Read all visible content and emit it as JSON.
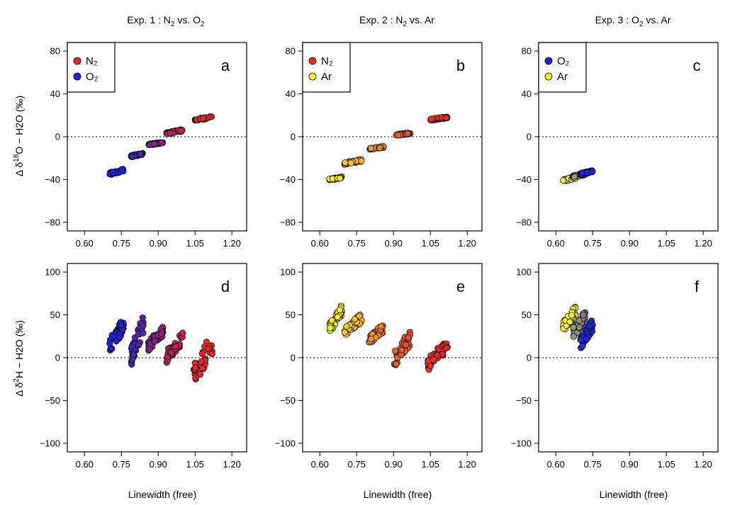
{
  "column_titles": [
    {
      "prefix": "Exp. 1 : N",
      "sub1": "2",
      "mid": " vs. O",
      "sub2": "2"
    },
    {
      "prefix": "Exp. 2 : N",
      "sub1": "2",
      "mid": " vs. Ar",
      "sub2": ""
    },
    {
      "prefix": "Exp. 3 : O",
      "sub1": "2",
      "mid": " vs. Ar",
      "sub2": ""
    }
  ],
  "row_labels": {
    "top": {
      "a": "Δ δ",
      "sup": "18",
      "b": "O − H2O (‰)"
    },
    "bottom": {
      "a": "Δ δ",
      "sup": "2",
      "b": "H − H2O (‰)"
    }
  },
  "x_axis_label": "Linewidth (free)",
  "colors": {
    "N2": "#e8262a",
    "O2": "#1f22d8",
    "Ar": "#f7f222"
  },
  "chart_data": [
    {
      "type": "scatter",
      "panel": "a",
      "col": 0,
      "row": 0,
      "xlim": [
        0.53,
        1.26
      ],
      "ylim": [
        -88,
        88
      ],
      "xticks": [
        "0.60",
        "0.75",
        "0.90",
        "1.05",
        "1.20"
      ],
      "yticks": [
        "-80",
        "-40",
        "0",
        "40",
        "80"
      ],
      "legend": [
        {
          "label": "N₂",
          "color": "#e8262a"
        },
        {
          "label": "O₂",
          "color": "#1f22d8"
        }
      ],
      "legend_position": "top-left",
      "series": [
        {
          "name": "O2→N2 mix",
          "color_from": "#1f22d8",
          "color_to": "#e8262a",
          "clusters": [
            {
              "x": [
                0.7,
                0.76
              ],
              "y": [
                -36,
                -30
              ]
            },
            {
              "x": [
                0.79,
                0.84
              ],
              "y": [
                -19,
                -15
              ]
            },
            {
              "x": [
                0.86,
                0.92
              ],
              "y": [
                -8,
                -5
              ]
            },
            {
              "x": [
                0.93,
                1.0
              ],
              "y": [
                2,
                7
              ]
            },
            {
              "x": [
                1.05,
                1.12
              ],
              "y": [
                15,
                19
              ]
            }
          ]
        }
      ]
    },
    {
      "type": "scatter",
      "panel": "b",
      "col": 1,
      "row": 0,
      "xlim": [
        0.53,
        1.26
      ],
      "ylim": [
        -88,
        88
      ],
      "xticks": [
        "0.60",
        "0.75",
        "0.90",
        "1.05",
        "1.20"
      ],
      "yticks": [
        "-80",
        "-40",
        "0",
        "40",
        "80"
      ],
      "legend": [
        {
          "label": "N₂",
          "color": "#e8262a"
        },
        {
          "label": "Ar",
          "color": "#f7f222"
        }
      ],
      "legend_position": "top-left",
      "series": [
        {
          "name": "Ar→N2 mix",
          "color_from": "#f7f222",
          "color_to": "#e8262a",
          "clusters": [
            {
              "x": [
                0.64,
                0.69
              ],
              "y": [
                -41,
                -37
              ]
            },
            {
              "x": [
                0.7,
                0.77
              ],
              "y": [
                -26,
                -21
              ]
            },
            {
              "x": [
                0.8,
                0.86
              ],
              "y": [
                -12,
                -9
              ]
            },
            {
              "x": [
                0.91,
                0.97
              ],
              "y": [
                1,
                4
              ]
            },
            {
              "x": [
                1.05,
                1.12
              ],
              "y": [
                15,
                19
              ]
            }
          ]
        }
      ]
    },
    {
      "type": "scatter",
      "panel": "c",
      "col": 2,
      "row": 0,
      "xlim": [
        0.53,
        1.26
      ],
      "ylim": [
        -88,
        88
      ],
      "xticks": [
        "0.60",
        "0.75",
        "0.90",
        "1.05",
        "1.20"
      ],
      "yticks": [
        "-80",
        "-40",
        "0",
        "40",
        "80"
      ],
      "legend": [
        {
          "label": "O₂",
          "color": "#1f22d8"
        },
        {
          "label": "Ar",
          "color": "#f7f222"
        }
      ],
      "legend_position": "top-left",
      "series": [
        {
          "name": "Ar→O2 mix",
          "color_from": "#f7f222",
          "color_to": "#1f22d8",
          "clusters": [
            {
              "x": [
                0.63,
                0.68
              ],
              "y": [
                -42,
                -37
              ]
            },
            {
              "x": [
                0.67,
                0.72
              ],
              "y": [
                -38,
                -34
              ]
            },
            {
              "x": [
                0.7,
                0.75
              ],
              "y": [
                -36,
                -31
              ]
            }
          ]
        }
      ]
    },
    {
      "type": "scatter",
      "panel": "d",
      "col": 0,
      "row": 1,
      "xlim": [
        0.53,
        1.26
      ],
      "ylim": [
        -110,
        110
      ],
      "xticks": [
        "0.60",
        "0.75",
        "0.90",
        "1.05",
        "1.20"
      ],
      "yticks": [
        "-100",
        "-50",
        "0",
        "50",
        "100"
      ],
      "series": [
        {
          "name": "O2→N2 mix",
          "color_from": "#1f22d8",
          "color_to": "#e8262a",
          "clusters": [
            {
              "x": [
                0.7,
                0.76
              ],
              "y": [
                5,
                48
              ]
            },
            {
              "x": [
                0.79,
                0.84
              ],
              "y": [
                -10,
                50
              ]
            },
            {
              "x": [
                0.86,
                0.92
              ],
              "y": [
                8,
                38
              ]
            },
            {
              "x": [
                0.93,
                1.0
              ],
              "y": [
                -8,
                30
              ]
            },
            {
              "x": [
                1.04,
                1.12
              ],
              "y": [
                -35,
                30
              ]
            }
          ]
        }
      ]
    },
    {
      "type": "scatter",
      "panel": "e",
      "col": 1,
      "row": 1,
      "xlim": [
        0.53,
        1.26
      ],
      "ylim": [
        -110,
        110
      ],
      "xticks": [
        "0.60",
        "0.75",
        "0.90",
        "1.05",
        "1.20"
      ],
      "yticks": [
        "-100",
        "-50",
        "0",
        "50",
        "100"
      ],
      "series": [
        {
          "name": "Ar→N2 mix",
          "color_from": "#f7f222",
          "color_to": "#e8262a",
          "clusters": [
            {
              "x": [
                0.64,
                0.69
              ],
              "y": [
                30,
                62
              ]
            },
            {
              "x": [
                0.7,
                0.77
              ],
              "y": [
                25,
                52
              ]
            },
            {
              "x": [
                0.8,
                0.86
              ],
              "y": [
                15,
                40
              ]
            },
            {
              "x": [
                0.9,
                0.97
              ],
              "y": [
                -12,
                33
              ]
            },
            {
              "x": [
                1.04,
                1.12
              ],
              "y": [
                -15,
                23
              ]
            }
          ]
        }
      ]
    },
    {
      "type": "scatter",
      "panel": "f",
      "col": 2,
      "row": 1,
      "xlim": [
        0.53,
        1.26
      ],
      "ylim": [
        -110,
        110
      ],
      "xticks": [
        "0.60",
        "0.75",
        "0.90",
        "1.05",
        "1.20"
      ],
      "yticks": [
        "-100",
        "-50",
        "0",
        "50",
        "100"
      ],
      "series": [
        {
          "name": "Ar→O2 mix",
          "color_from": "#f7f222",
          "color_to": "#1f22d8",
          "clusters": [
            {
              "x": [
                0.63,
                0.68
              ],
              "y": [
                30,
                62
              ]
            },
            {
              "x": [
                0.67,
                0.72
              ],
              "y": [
                22,
                55
              ]
            },
            {
              "x": [
                0.7,
                0.75
              ],
              "y": [
                10,
                45
              ]
            }
          ]
        }
      ]
    }
  ]
}
